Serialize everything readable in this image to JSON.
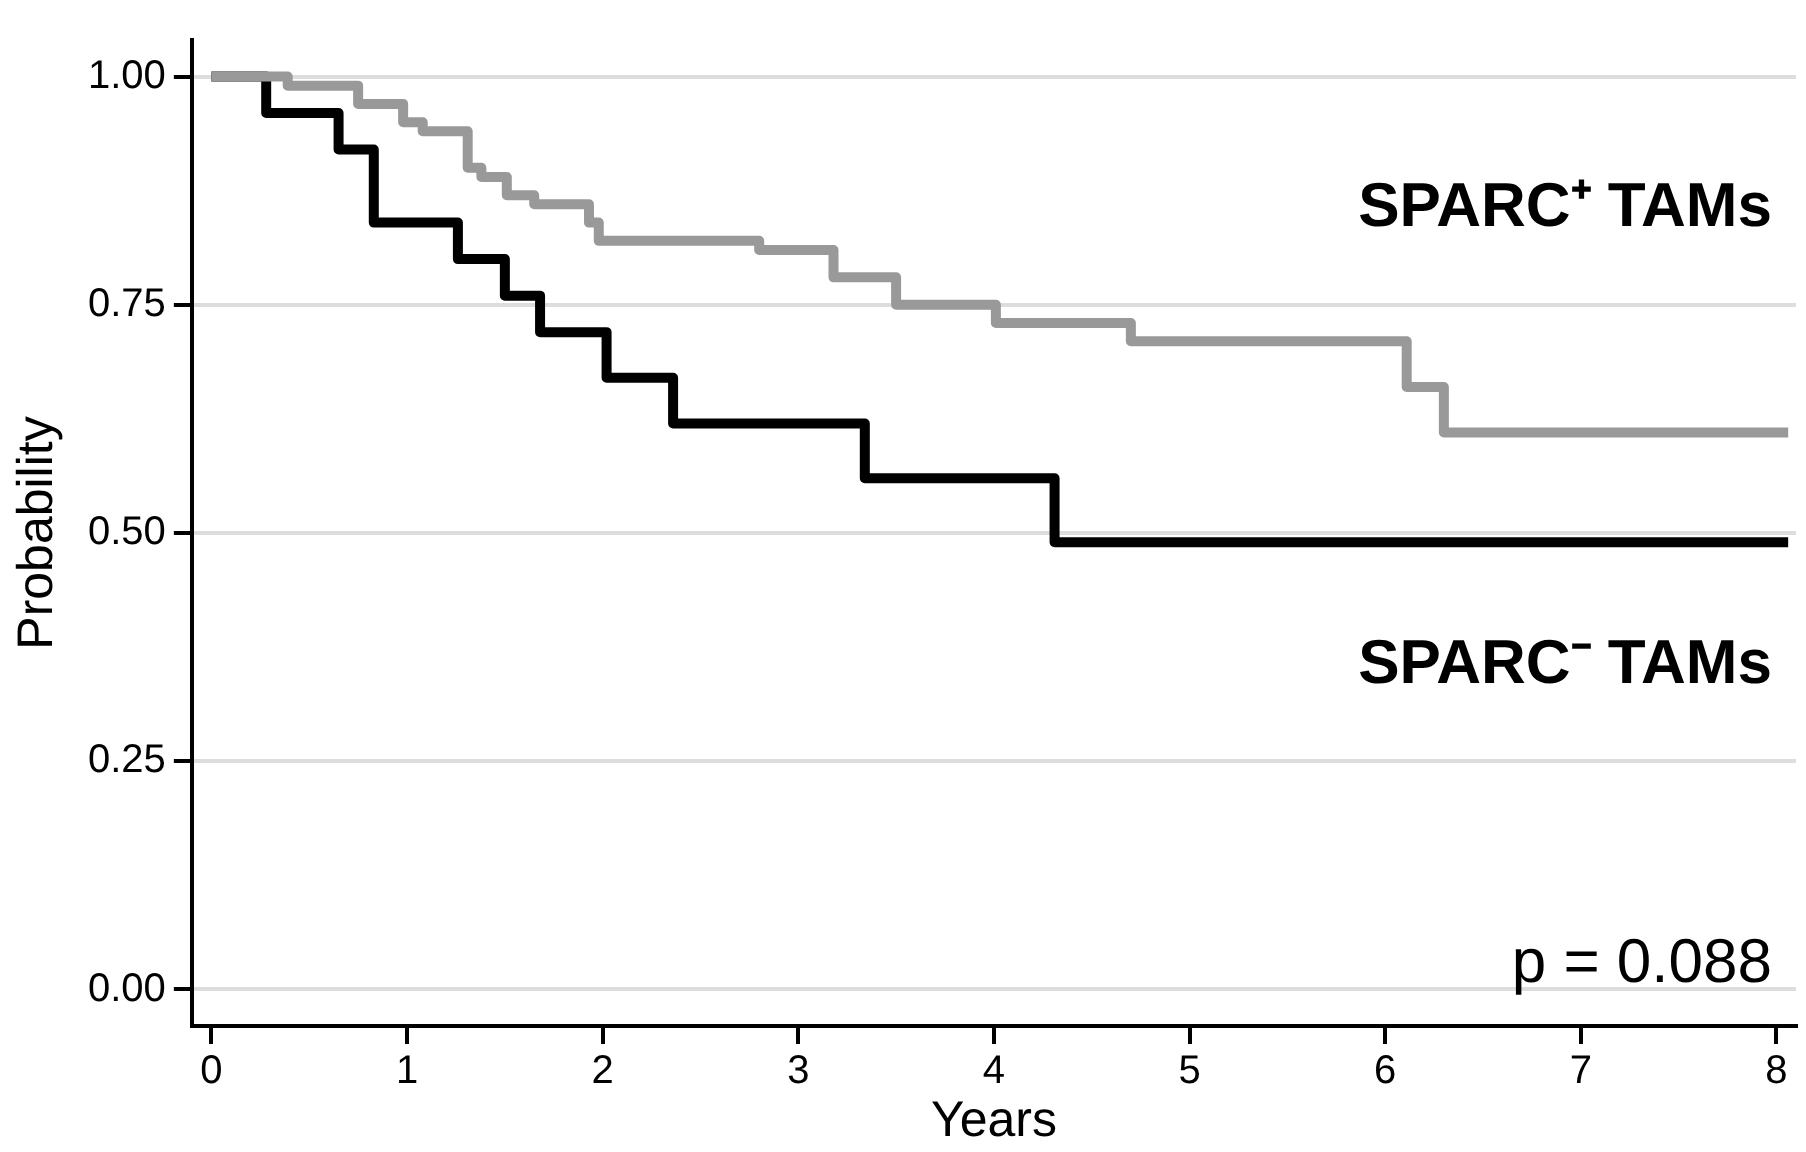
{
  "chart_data": {
    "type": "step",
    "xlabel": "Years",
    "ylabel": "Probability",
    "series": [
      {
        "name": "SPARC⁺ TAMs",
        "color": "#999999",
        "x": [
          0,
          0.39,
          0.75,
          0.98,
          1.08,
          1.31,
          1.38,
          1.51,
          1.65,
          1.93,
          1.98,
          2.8,
          3.18,
          3.5,
          4.01,
          4.7,
          6.11,
          6.3,
          8.06
        ],
        "values": [
          1,
          0.99,
          0.97,
          0.95,
          0.94,
          0.9,
          0.89,
          0.87,
          0.86,
          0.84,
          0.82,
          0.81,
          0.78,
          0.75,
          0.73,
          0.71,
          0.66,
          0.61,
          0.61
        ]
      },
      {
        "name": "SPARC⁻ TAMs",
        "color": "#000000",
        "x": [
          0,
          0.28,
          0.65,
          0.83,
          1.26,
          1.5,
          1.68,
          2.02,
          2.36,
          3.34,
          4.31,
          8.06
        ],
        "values": [
          1,
          0.96,
          0.92,
          0.84,
          0.8,
          0.76,
          0.72,
          0.67,
          0.62,
          0.56,
          0.49,
          0.49
        ]
      }
    ],
    "xlim": [
      -0.1,
      8.1
    ],
    "xticks": [
      0,
      1,
      2,
      3,
      4,
      5,
      6,
      7,
      8
    ],
    "ylim": [
      -0.04,
      1.04
    ],
    "yticks": [
      {
        "value": 0,
        "label": "0.00"
      },
      {
        "value": 0.25,
        "label": "0.25"
      },
      {
        "value": 0.5,
        "label": "0.50"
      },
      {
        "value": 0.75,
        "label": "0.75"
      },
      {
        "value": 1,
        "label": "1.00"
      }
    ],
    "grid": "y",
    "legend": false,
    "marker": "none",
    "line_style": "solid",
    "annotations": [
      "p = 0.088"
    ]
  }
}
